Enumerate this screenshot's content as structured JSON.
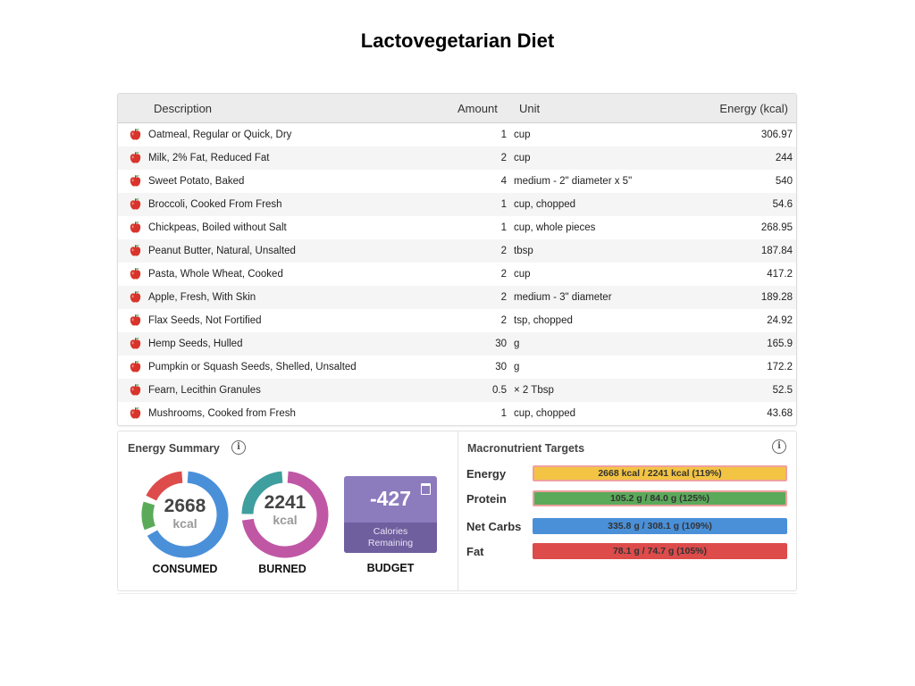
{
  "page": {
    "title": "Lactovegetarian Diet"
  },
  "table": {
    "headers": {
      "description": "Description",
      "amount": "Amount",
      "unit": "Unit",
      "energy": "Energy (kcal)"
    },
    "food_icon": "apple-icon",
    "rows": [
      {
        "description": "Oatmeal, Regular or Quick, Dry",
        "amount": "1",
        "unit": "cup",
        "energy": "306.97"
      },
      {
        "description": "Milk, 2% Fat, Reduced Fat",
        "amount": "2",
        "unit": "cup",
        "energy": "244"
      },
      {
        "description": "Sweet Potato, Baked",
        "amount": "4",
        "unit": "medium - 2\" diameter x 5\"",
        "energy": "540"
      },
      {
        "description": "Broccoli, Cooked From Fresh",
        "amount": "1",
        "unit": "cup, chopped",
        "energy": "54.6"
      },
      {
        "description": "Chickpeas, Boiled without Salt",
        "amount": "1",
        "unit": "cup, whole pieces",
        "energy": "268.95"
      },
      {
        "description": "Peanut Butter, Natural, Unsalted",
        "amount": "2",
        "unit": "tbsp",
        "energy": "187.84"
      },
      {
        "description": "Pasta, Whole Wheat, Cooked",
        "amount": "2",
        "unit": "cup",
        "energy": "417.2"
      },
      {
        "description": "Apple, Fresh, With Skin",
        "amount": "2",
        "unit": "medium - 3\" diameter",
        "energy": "189.28"
      },
      {
        "description": "Flax Seeds, Not Fortified",
        "amount": "2",
        "unit": "tsp, chopped",
        "energy": "24.92"
      },
      {
        "description": "Hemp Seeds, Hulled",
        "amount": "30",
        "unit": "g",
        "energy": "165.9"
      },
      {
        "description": "Pumpkin or Squash Seeds, Shelled, Unsalted",
        "amount": "30",
        "unit": "g",
        "energy": "172.2"
      },
      {
        "description": "Fearn, Lecithin Granules",
        "amount": "0.5",
        "unit": "× 2 Tbsp",
        "energy": "52.5"
      },
      {
        "description": "Mushrooms, Cooked from Fresh",
        "amount": "1",
        "unit": "cup, chopped",
        "energy": "43.68"
      }
    ]
  },
  "energy_summary": {
    "title": "Energy Summary",
    "consumed": {
      "value": "2668",
      "unit": "kcal",
      "caption": "CONSUMED",
      "segments": [
        {
          "fraction": 0.68,
          "color": "#4a90d9"
        },
        {
          "fraction": 0.13,
          "color": "#5aaa5a"
        },
        {
          "fraction": 0.19,
          "color": "#dd4b4b"
        }
      ]
    },
    "burned": {
      "value": "2241",
      "unit": "kcal",
      "caption": "BURNED",
      "segments": [
        {
          "fraction": 0.74,
          "color": "#c057a5"
        },
        {
          "fraction": 0.26,
          "color": "#3f9e9e"
        }
      ]
    },
    "budget": {
      "value": "-427",
      "sub_line1": "Calories",
      "sub_line2": "Remaining",
      "caption": "BUDGET"
    }
  },
  "macro_targets": {
    "title": "Macronutrient Targets",
    "items": [
      {
        "label": "Energy",
        "text": "2668 kcal / 2241 kcal (119%)",
        "percent": 119,
        "color": "#f3c443"
      },
      {
        "label": "Protein",
        "text": "105.2 g / 84.0 g (125%)",
        "percent": 125,
        "color": "#5aaa5a"
      },
      {
        "label": "Net Carbs",
        "text": "335.8 g / 308.1 g (109%)",
        "percent": 109,
        "color": "#4a90d9"
      },
      {
        "label": "Fat",
        "text": "78.1 g / 74.7 g (105%)",
        "percent": 105,
        "color": "#dd4b4b"
      }
    ]
  }
}
